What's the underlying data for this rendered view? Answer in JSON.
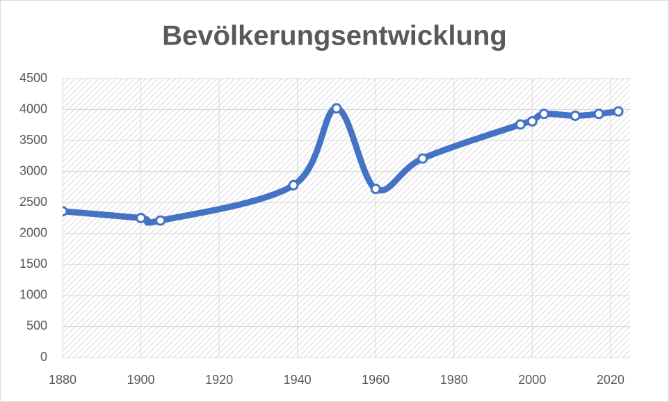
{
  "chart_data": {
    "type": "line",
    "title": "Bevölkerungsentwicklung",
    "x": [
      1880,
      1900,
      1905,
      1939,
      1950,
      1960,
      1972,
      1997,
      2000,
      2003,
      2011,
      2017,
      2022
    ],
    "values": [
      2360,
      2250,
      2210,
      2780,
      4020,
      2720,
      3210,
      3760,
      3810,
      3930,
      3900,
      3930,
      3970
    ],
    "color": "#4472c4",
    "xlim": [
      1880,
      2025
    ],
    "xticks": [
      1880,
      1900,
      1920,
      1940,
      1960,
      1980,
      2000,
      2020
    ],
    "ylim": [
      0,
      4500
    ],
    "yticks": [
      0,
      500,
      1000,
      1500,
      2000,
      2500,
      3000,
      3500,
      4000,
      4500
    ],
    "grid": true,
    "smooth": true
  }
}
